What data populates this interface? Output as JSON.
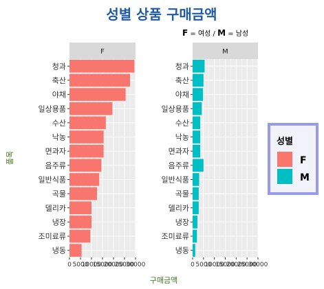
{
  "chart_data": {
    "type": "bar",
    "orientation": "horizontal",
    "title": "성별 상품 구매금액",
    "subtitle_parts": [
      "F",
      " = 여성 / ",
      "M",
      " = 남성"
    ],
    "xlabel": "구매금액",
    "ylabel": "품목",
    "categories": [
      "청과",
      "축산",
      "야채",
      "일상용품",
      "수산",
      "낙농",
      "면과자",
      "음주류",
      "일반식품",
      "곡물",
      "델리카",
      "냉장",
      "조미료류",
      "냉동"
    ],
    "facets": [
      "F",
      "M"
    ],
    "series": [
      {
        "name": "F",
        "values": [
          29500,
          27500,
          25500,
          19500,
          16500,
          15500,
          15500,
          14500,
          13500,
          12500,
          10000,
          10000,
          9500,
          5500
        ]
      },
      {
        "name": "M",
        "values": [
          5500,
          5000,
          4800,
          4200,
          3500,
          3500,
          3500,
          5000,
          3000,
          2800,
          2800,
          2200,
          2000,
          1200
        ]
      }
    ],
    "xlim": [
      0,
      30000
    ],
    "xticks": [
      0,
      5000,
      10000,
      15000,
      20000,
      25000,
      30000
    ],
    "xtick_labels": [
      "0",
      "5000",
      "10000",
      "15000",
      "20000",
      "25000",
      "30000"
    ],
    "legend": {
      "title": "성별",
      "placement": "right",
      "entries": [
        "F",
        "M"
      ]
    },
    "grid": true,
    "colors": {
      "F": "#F8766D",
      "M": "#00BFC4",
      "title": "#1F5AA6",
      "axis_label": "#3D7A1F",
      "panel_bg": "#EBEBEB",
      "strip_bg": "#D9D9D9",
      "legend_border": "#9999EE",
      "legend_bg": "#F2F2FA"
    }
  }
}
